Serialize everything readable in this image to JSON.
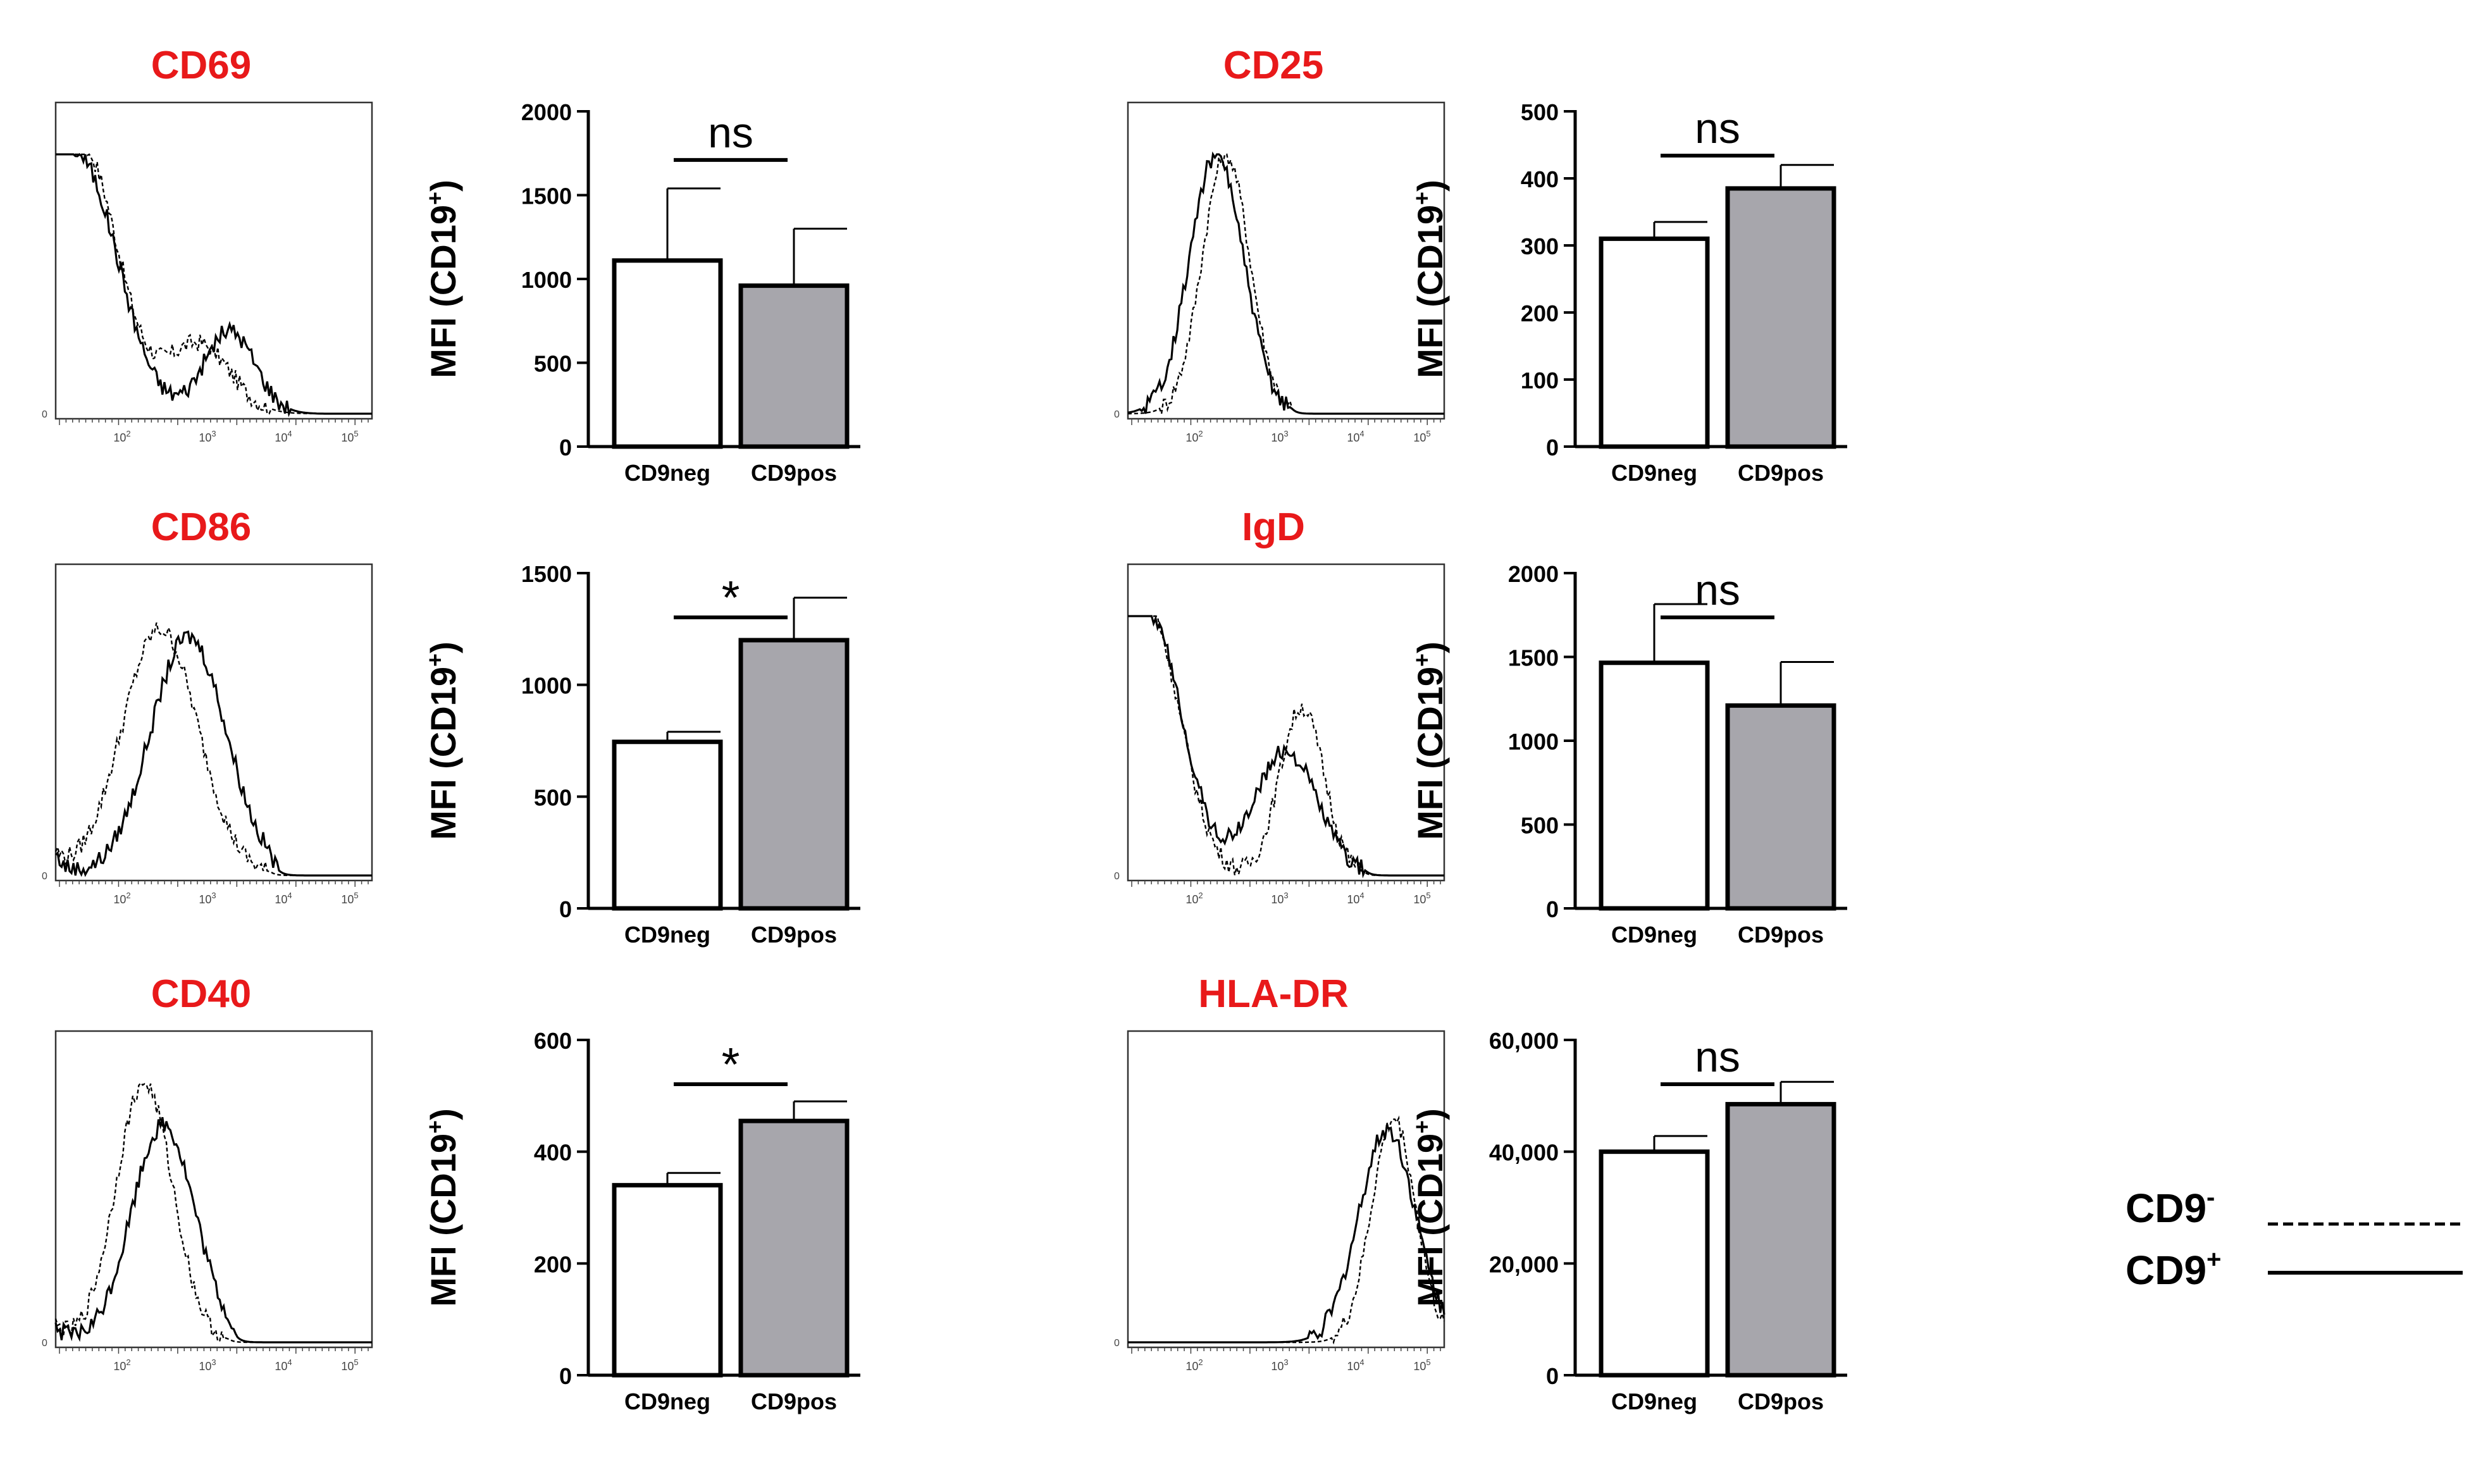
{
  "colors": {
    "title": "#e8191a",
    "cd9pos_bar": "#a7a6ac",
    "cd9neg_bar": "#ffffff",
    "ink": "#000000"
  },
  "legend": {
    "cd9neg_base": "CD9",
    "cd9neg_sup": "-",
    "cd9neg_style": "dashed",
    "cd9pos_base": "CD9",
    "cd9pos_sup": "+",
    "cd9pos_style": "solid"
  },
  "histogram_axis": {
    "zero_label": "0",
    "base": "10",
    "exponents": [
      "2",
      "3",
      "4",
      "5"
    ]
  },
  "chart_data": [
    {
      "type": "histogram",
      "title": "CD69"
    },
    {
      "type": "bar",
      "categories": [
        "CD9neg",
        "CD9pos"
      ],
      "values": [
        1110,
        960
      ],
      "errors": [
        430,
        340
      ],
      "ylim": [
        0,
        2000
      ],
      "yticks": [
        "0",
        "500",
        "1000",
        "1500",
        "2000"
      ],
      "ylabel_main": "MFI (CD19",
      "ylabel_sup": "+",
      "ylabel_close": ")",
      "significance": "ns"
    },
    {
      "type": "histogram",
      "title": "CD25"
    },
    {
      "type": "bar",
      "categories": [
        "CD9neg",
        "CD9pos"
      ],
      "values": [
        310,
        385
      ],
      "errors": [
        25,
        35
      ],
      "ylim": [
        0,
        500
      ],
      "yticks": [
        "0",
        "100",
        "200",
        "300",
        "400",
        "500"
      ],
      "ylabel_main": "MFI (CD19",
      "ylabel_sup": "+",
      "ylabel_close": ")",
      "significance": "ns"
    },
    {
      "type": "histogram",
      "title": "CD86"
    },
    {
      "type": "bar",
      "categories": [
        "CD9neg",
        "CD9pos"
      ],
      "values": [
        745,
        1200
      ],
      "errors": [
        45,
        190
      ],
      "ylim": [
        0,
        1500
      ],
      "yticks": [
        "0",
        "500",
        "1000",
        "1500"
      ],
      "ylabel_main": "MFI (CD19",
      "ylabel_sup": "+",
      "ylabel_close": ")",
      "significance": "*"
    },
    {
      "type": "histogram",
      "title": "IgD"
    },
    {
      "type": "bar",
      "categories": [
        "CD9neg",
        "CD9pos"
      ],
      "values": [
        1465,
        1210
      ],
      "errors": [
        350,
        260
      ],
      "ylim": [
        0,
        2000
      ],
      "yticks": [
        "0",
        "500",
        "1000",
        "1500",
        "2000"
      ],
      "ylabel_main": "MFI (CD19",
      "ylabel_sup": "+",
      "ylabel_close": ")",
      "significance": "ns"
    },
    {
      "type": "histogram",
      "title": "CD40"
    },
    {
      "type": "bar",
      "categories": [
        "CD9neg",
        "CD9pos"
      ],
      "values": [
        340,
        455
      ],
      "errors": [
        22,
        35
      ],
      "ylim": [
        0,
        600
      ],
      "yticks": [
        "0",
        "200",
        "400",
        "600"
      ],
      "ylabel_main": "MFI (CD19",
      "ylabel_sup": "+",
      "ylabel_close": ")",
      "significance": "*"
    },
    {
      "type": "histogram",
      "title": "HLA-DR"
    },
    {
      "type": "bar",
      "categories": [
        "CD9neg",
        "CD9pos"
      ],
      "values": [
        40000,
        48500
      ],
      "errors": [
        2800,
        4000
      ],
      "ylim": [
        0,
        60000
      ],
      "yticks": [
        "0",
        "20,000",
        "40,000",
        "60,000"
      ],
      "ylabel_main": "MFI (CD19",
      "ylabel_sup": "+",
      "ylabel_close": ")",
      "significance": "ns"
    }
  ]
}
